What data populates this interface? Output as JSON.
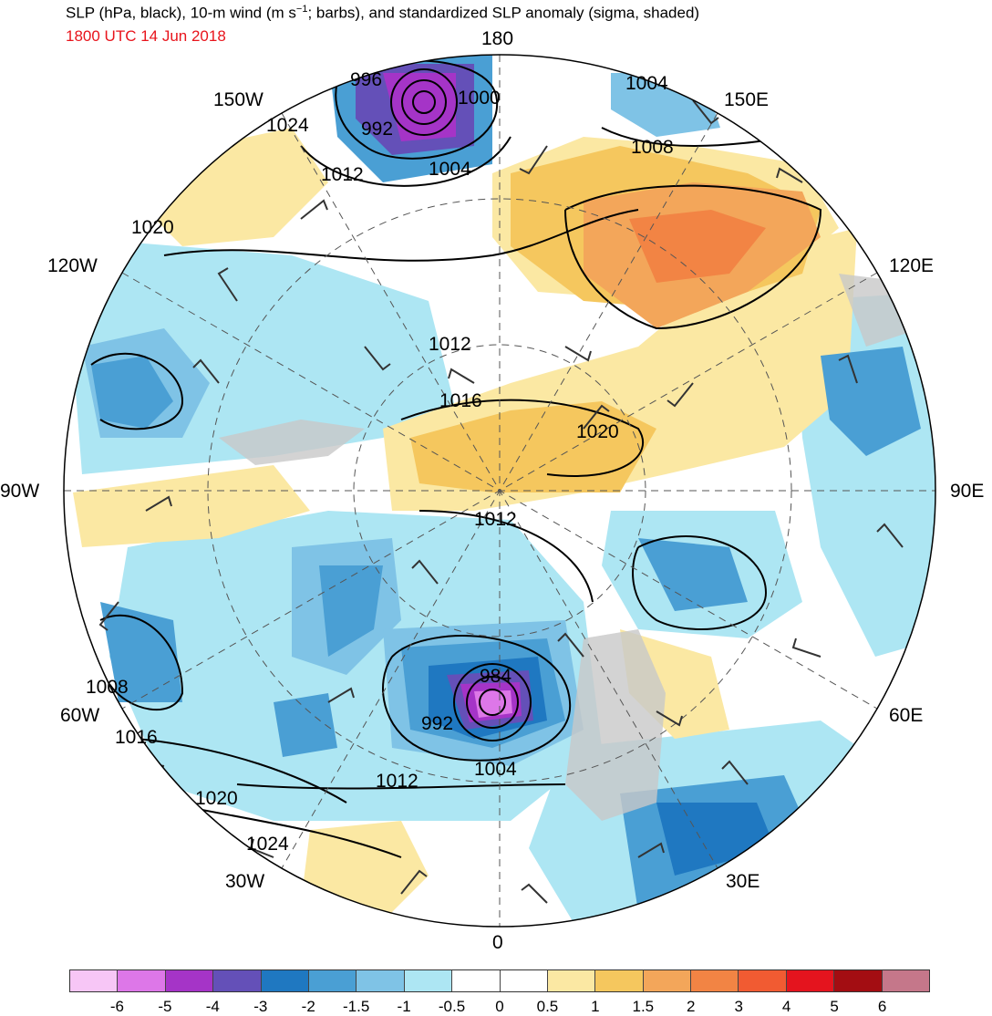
{
  "header": {
    "title_prefix": "SLP (hPa, black), 10-m wind (m s",
    "title_exp": "−1",
    "title_suffix": "; barbs), and standardized SLP anomaly (sigma, shaded)",
    "valid_time": "1800 UTC 14 Jun 2018"
  },
  "longitude_labels": {
    "top": "180",
    "bottom": "0",
    "left": "90W",
    "right": "90E",
    "w150": "150W",
    "e150": "150E",
    "w120": "120W",
    "e120": "120E",
    "w60": "60W",
    "e60": "60E",
    "w30": "30W",
    "e30": "30E"
  },
  "isobar_labels": {
    "l996": "996",
    "l1000": "1000",
    "l992a": "992",
    "l1004a": "1004",
    "l1012a": "1012",
    "l1024a": "1024",
    "l1020a": "1020",
    "l1004b": "1004",
    "l1008a": "1008",
    "l1012b": "1012",
    "l1016a": "1016",
    "l1020b": "1020",
    "l1012c": "1012",
    "l984": "984",
    "l992b": "992",
    "l1004c": "1004",
    "l1012d": "1012",
    "l1008b": "1008",
    "l1016b": "1016",
    "l1020c": "1020",
    "l1024b": "1024"
  },
  "colorbar": {
    "colors": [
      "#f7c6f6",
      "#dd77e8",
      "#a534c7",
      "#6450b8",
      "#1f78c1",
      "#4a9fd4",
      "#7fc3e6",
      "#ade6f3",
      "#ffffff",
      "#ffffff",
      "#fbe8a3",
      "#f5c75e",
      "#f3a65a",
      "#f28444",
      "#f15b32",
      "#e4141e",
      "#a30d12",
      "#c5778a"
    ],
    "labels": [
      "-6",
      "-5",
      "-4",
      "-3",
      "-2",
      "-1.5",
      "-1",
      "-0.5",
      "0",
      "0.5",
      "1",
      "1.5",
      "2",
      "3",
      "4",
      "5",
      "6"
    ]
  },
  "colors": {
    "land": "#c8c8c8",
    "isobar": "#000000",
    "title_time": "#e8141c"
  }
}
